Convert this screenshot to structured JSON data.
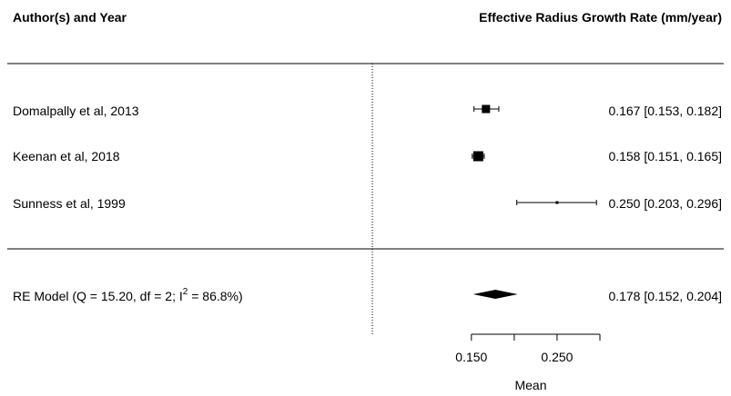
{
  "chart_data": {
    "type": "forest",
    "header_left": "Author(s) and Year",
    "header_right": "Effective Radius Growth Rate (mm/year)",
    "studies": [
      {
        "label": "Domalpally et al, 2013",
        "estimate": 0.167,
        "ci_low": 0.153,
        "ci_high": 0.182,
        "ci_text": "0.167 [0.153, 0.182]"
      },
      {
        "label": "Keenan et al, 2018",
        "estimate": 0.158,
        "ci_low": 0.151,
        "ci_high": 0.165,
        "ci_text": "0.158 [0.151, 0.165]"
      },
      {
        "label": "Sunness et al, 1999",
        "estimate": 0.25,
        "ci_low": 0.203,
        "ci_high": 0.296,
        "ci_text": "0.250 [0.203, 0.296]"
      }
    ],
    "summary": {
      "label_prefix": "RE Model  (Q = 15.20, df = 2; I",
      "label_sup": "2",
      "label_suffix": " = 86.8%)",
      "estimate": 0.178,
      "ci_low": 0.152,
      "ci_high": 0.204,
      "ci_text": "0.178 [0.152, 0.204]"
    },
    "xlabel": "Mean",
    "x_ticks": [
      0.15,
      0.2,
      0.25,
      0.3
    ],
    "x_tick_labels": [
      "0.150",
      "",
      "0.250",
      ""
    ],
    "xlim": [
      0.13,
      0.3
    ],
    "reference_line": 0.0
  }
}
